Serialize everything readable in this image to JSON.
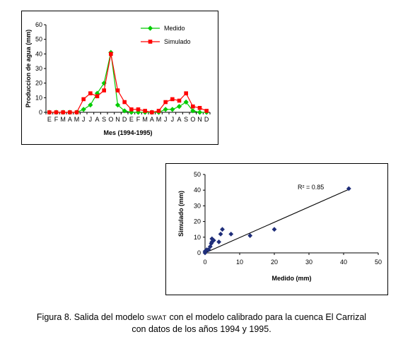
{
  "caption": {
    "line1_part1": "Figura 8. Salida del modelo ",
    "line1_model": "SWAT",
    "line1_part2": " con el modelo calibrado para la cuenca El Carrizal",
    "line2": "con datos de los años 1994 y 1995."
  },
  "chart_data": [
    {
      "type": "line",
      "xlabel": "Mes (1994-1995)",
      "ylabel": "Produccion de agua (mm)",
      "ylim": [
        0,
        60
      ],
      "yticks": [
        0,
        10,
        20,
        30,
        40,
        50,
        60
      ],
      "categories": [
        "E",
        "F",
        "M",
        "A",
        "M",
        "J",
        "J",
        "A",
        "S",
        "O",
        "N",
        "D",
        "E",
        "F",
        "M",
        "A",
        "M",
        "J",
        "J",
        "A",
        "S",
        "O",
        "N",
        "D"
      ],
      "legend_position": "top-right",
      "grid": false,
      "series": [
        {
          "name": "Medido",
          "color": "#00cc00",
          "marker": "diamond",
          "values": [
            0,
            0,
            0,
            0,
            0,
            2,
            5,
            13,
            20,
            41,
            5,
            1,
            0,
            0,
            0,
            0,
            0,
            2,
            2,
            4,
            7,
            1,
            0,
            0
          ]
        },
        {
          "name": "Simulado",
          "color": "#ff0000",
          "marker": "square",
          "values": [
            0,
            0,
            0,
            0,
            0,
            9,
            13,
            11,
            15,
            40,
            15,
            7,
            2,
            2,
            1,
            0,
            1,
            7,
            9,
            8,
            13,
            4,
            3,
            1
          ]
        }
      ]
    },
    {
      "type": "scatter",
      "xlabel": "Medido (mm)",
      "ylabel": "Simulado (mm)",
      "xlim": [
        0,
        50
      ],
      "ylim": [
        0,
        50
      ],
      "xticks": [
        0,
        10,
        20,
        30,
        40,
        50
      ],
      "yticks": [
        0,
        10,
        20,
        30,
        40,
        50
      ],
      "annotation": "R² = 0.85",
      "grid": false,
      "color": "#1f2e7a",
      "marker": "diamond",
      "points": [
        {
          "x": 0,
          "y": 0
        },
        {
          "x": 0,
          "y": 1
        },
        {
          "x": 0.5,
          "y": 2
        },
        {
          "x": 1,
          "y": 2
        },
        {
          "x": 1.5,
          "y": 4
        },
        {
          "x": 2,
          "y": 7
        },
        {
          "x": 2,
          "y": 9
        },
        {
          "x": 2.5,
          "y": 8
        },
        {
          "x": 1.8,
          "y": 6
        },
        {
          "x": 4,
          "y": 7
        },
        {
          "x": 4.5,
          "y": 12
        },
        {
          "x": 5,
          "y": 15
        },
        {
          "x": 7.5,
          "y": 12
        },
        {
          "x": 13,
          "y": 11
        },
        {
          "x": 20,
          "y": 15
        },
        {
          "x": 41.5,
          "y": 41
        }
      ],
      "trendline": {
        "x": [
          0,
          42
        ],
        "y": [
          0,
          41
        ]
      }
    }
  ]
}
